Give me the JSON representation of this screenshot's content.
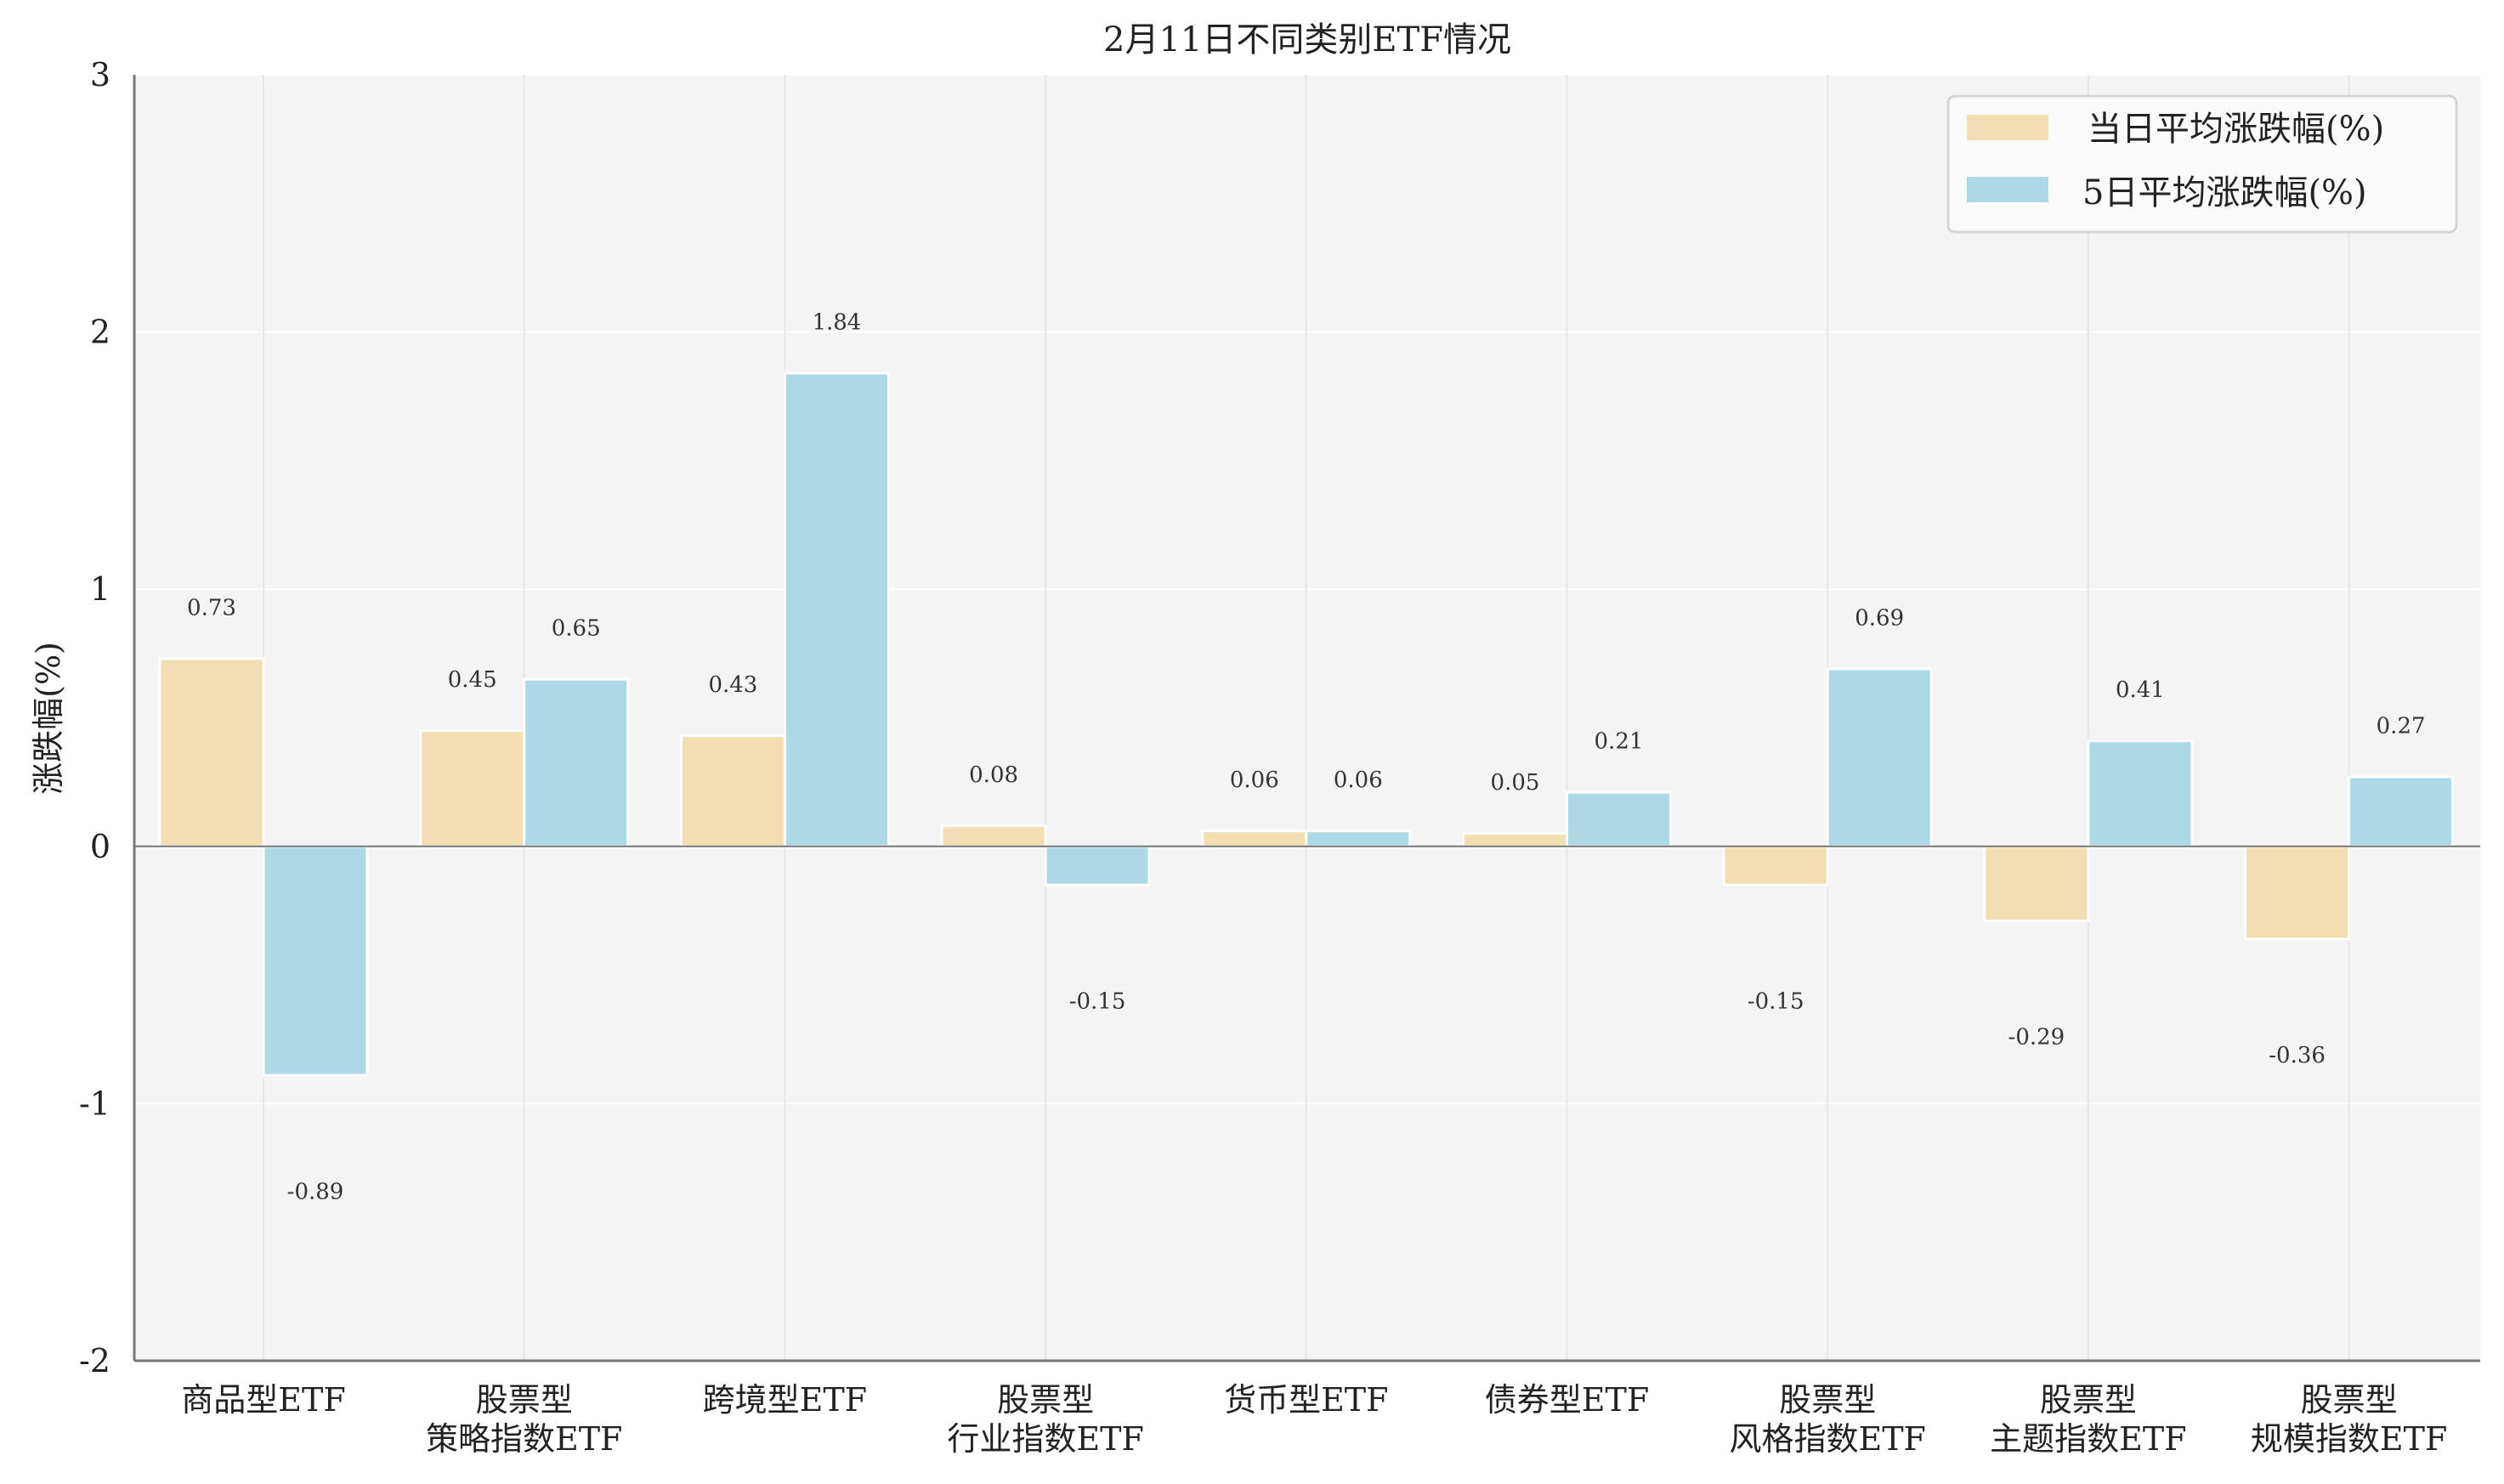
{
  "chart_data": {
    "type": "bar",
    "title": "2月11日不同类别ETF情况",
    "xlabel": "",
    "ylabel": "涨跌幅(%)",
    "ylim": [
      -2,
      3
    ],
    "yticks": [
      "3",
      "2",
      "1",
      "0",
      "-1",
      "-2"
    ],
    "ytick_values": [
      3,
      2,
      1,
      0,
      -1,
      -2
    ],
    "grid": true,
    "legend_position": "top-right",
    "categories": [
      [
        "商品型ETF"
      ],
      [
        "股票型",
        "策略指数ETF"
      ],
      [
        "跨境型ETF"
      ],
      [
        "股票型",
        "行业指数ETF"
      ],
      [
        "货币型ETF"
      ],
      [
        "债券型ETF"
      ],
      [
        "股票型",
        "风格指数ETF"
      ],
      [
        "股票型",
        "主题指数ETF"
      ],
      [
        "股票型",
        "规模指数ETF"
      ]
    ],
    "series": [
      {
        "name": "当日平均涨跌幅(%)",
        "color": "#f3ddb3",
        "values": [
          0.73,
          0.45,
          0.43,
          0.08,
          0.06,
          0.05,
          -0.15,
          -0.29,
          -0.36
        ]
      },
      {
        "name": "5日平均涨跌幅(%)",
        "color": "#add8e6",
        "values": [
          -0.89,
          0.65,
          1.84,
          -0.15,
          0.06,
          0.21,
          0.69,
          0.41,
          0.27
        ]
      }
    ]
  }
}
